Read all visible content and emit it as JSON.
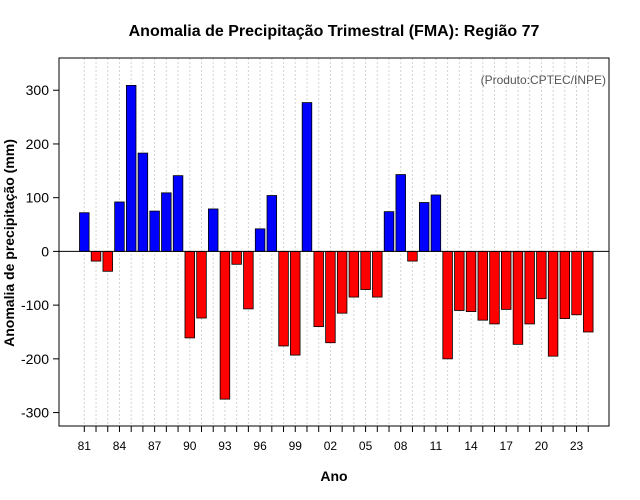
{
  "chart_data": {
    "type": "bar",
    "title": "Anomalia de Precipitação Trimestral (FMA): Região 77",
    "xlabel": "Ano",
    "ylabel": "Anomalia de precipitação (mm)",
    "credit": "(Produto:CPTEC/INPE)",
    "ylim": [
      -325,
      360
    ],
    "yticks": [
      -300,
      -200,
      -100,
      0,
      100,
      200,
      300
    ],
    "years": [
      1981,
      1982,
      1983,
      1984,
      1985,
      1986,
      1987,
      1988,
      1989,
      1990,
      1991,
      1992,
      1993,
      1994,
      1995,
      1996,
      1997,
      1998,
      1999,
      2000,
      2001,
      2002,
      2003,
      2004,
      2005,
      2006,
      2007,
      2008,
      2009,
      2010,
      2011,
      2012,
      2013,
      2014,
      2015,
      2016,
      2017,
      2018,
      2019,
      2020,
      2021,
      2022,
      2023,
      2024
    ],
    "x_tick_labels": [
      "81",
      "84",
      "87",
      "90",
      "93",
      "96",
      "99",
      "02",
      "05",
      "08",
      "11",
      "14",
      "17",
      "20",
      "23"
    ],
    "values": [
      72,
      -18,
      -37,
      92,
      309,
      183,
      75,
      109,
      141,
      -161,
      -124,
      79,
      -275,
      -24,
      -107,
      42,
      104,
      -176,
      -193,
      277,
      -140,
      -170,
      -115,
      -85,
      -71,
      -85,
      74,
      143,
      -18,
      91,
      105,
      -200,
      -110,
      -112,
      -128,
      -135,
      -108,
      -173,
      -135,
      -88,
      -195,
      -125,
      -118,
      -150
    ],
    "colors": {
      "positive": "#0000ff",
      "negative": "#ff0000",
      "grid": "#d3d3d3",
      "frame": "#000000"
    }
  }
}
